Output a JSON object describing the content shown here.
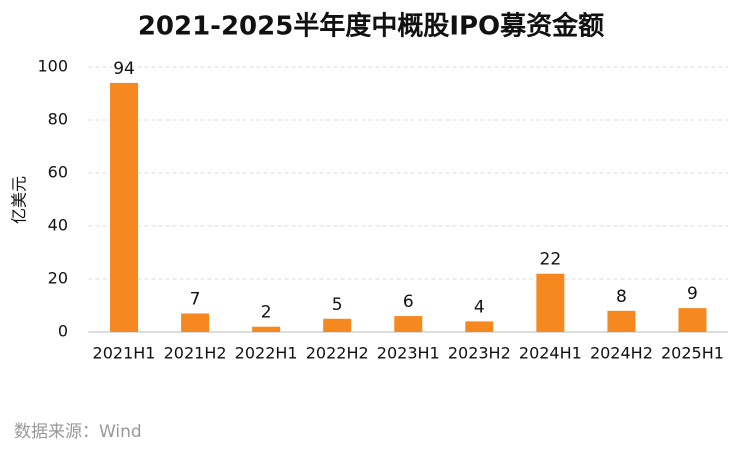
{
  "chart_data": {
    "type": "bar",
    "title": "2021-2025半年度中概股IPO募资金额",
    "y_label": "亿美元",
    "source": "数据来源：Wind",
    "categories": [
      "2021H1",
      "2021H2",
      "2022H1",
      "2022H2",
      "2023H1",
      "2023H2",
      "2024H1",
      "2024H2",
      "2025H1"
    ],
    "values": [
      94,
      7,
      2,
      5,
      6,
      4,
      22,
      8,
      9
    ],
    "color": "#f5891f",
    "ylim": [
      0,
      100
    ],
    "yticks": [
      0,
      20,
      40,
      60,
      80,
      100
    ],
    "grid": true
  }
}
